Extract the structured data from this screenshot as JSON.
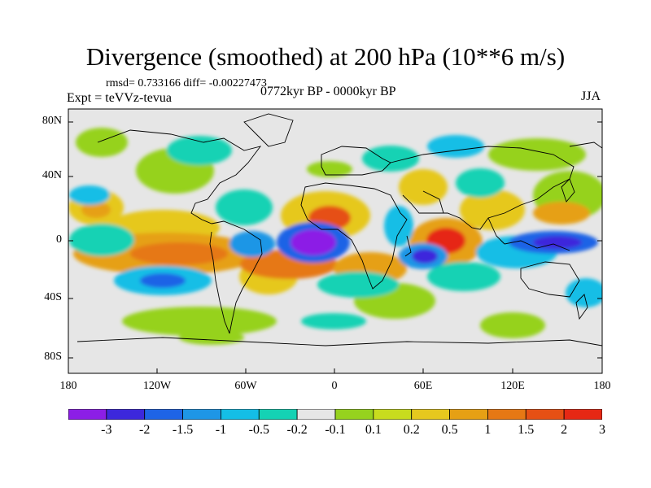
{
  "header": {
    "title": "Divergence (smoothed) at 200 hPa (10**6 m/s)",
    "stats": "rmsd= 0.733166 diff= -0.00227473",
    "experiment": "Expt = teVVz-tevua",
    "period": "0772kyr BP - 0000kyr BP",
    "season": "JJA"
  },
  "map": {
    "y_ticks": [
      "80N",
      "40N",
      "0",
      "40S",
      "80S"
    ],
    "x_ticks": [
      "180",
      "120W",
      "60W",
      "0",
      "60E",
      "120E",
      "180"
    ],
    "background_color": "#e6e6e6"
  },
  "colorbar": {
    "colors": [
      "#8c1ee6",
      "#3c28dc",
      "#1e64e6",
      "#1e96e6",
      "#14bee6",
      "#14d2b4",
      "#e6e6e6",
      "#96d21e",
      "#c8dc1e",
      "#e6c81e",
      "#e6a014",
      "#e67814",
      "#e65014",
      "#e62814"
    ],
    "labels": [
      "-3",
      "-2",
      "-1.5",
      "-1",
      "-0.5",
      "-0.2",
      "-0.1",
      "0.1",
      "0.2",
      "0.5",
      "1",
      "1.5",
      "2",
      "3"
    ]
  }
}
